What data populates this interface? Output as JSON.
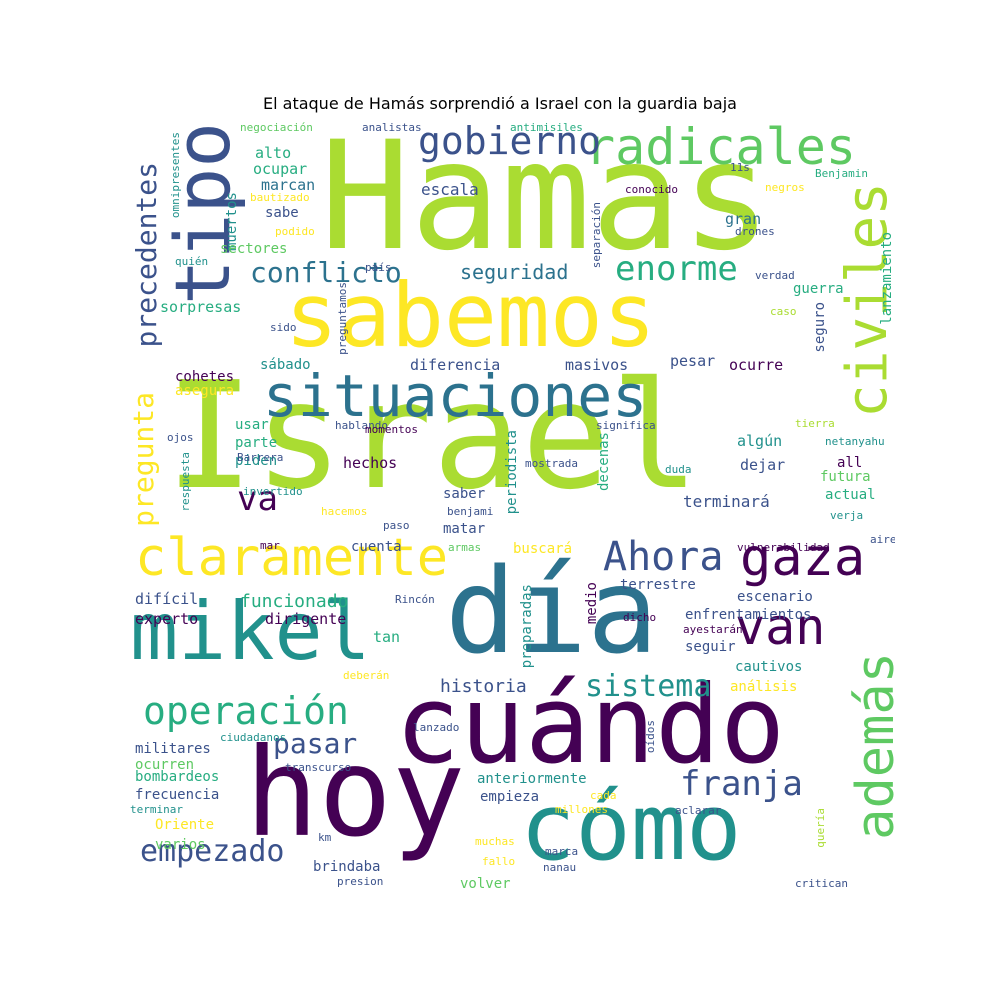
{
  "title": "El ataque de Hamás sorprendió a Israel con la guardia baja",
  "colors": {
    "purple": "#440154",
    "indigo": "#3b528b",
    "blue": "#2c728e",
    "teal": "#21918c",
    "green": "#27ad81",
    "lime": "#5ec962",
    "yellow": "#fde725",
    "yellowgreen": "#aadc32"
  },
  "words": [
    {
      "text": "Hamas",
      "color": "yellowgreen"
    },
    {
      "text": "Israel",
      "color": "yellowgreen"
    },
    {
      "text": "sabemos",
      "color": "yellow"
    },
    {
      "text": "día",
      "color": "blue"
    },
    {
      "text": "cuándo",
      "color": "purple"
    },
    {
      "text": "hoy",
      "color": "purple"
    },
    {
      "text": "cómo",
      "color": "teal"
    },
    {
      "text": "mikel",
      "color": "teal"
    },
    {
      "text": "tipo",
      "color": "indigo"
    },
    {
      "text": "situaciones",
      "color": "blue"
    },
    {
      "text": "radicales",
      "color": "lime"
    },
    {
      "text": "claramente",
      "color": "yellow"
    },
    {
      "text": "gaza",
      "color": "purple"
    },
    {
      "text": "van",
      "color": "purple"
    },
    {
      "text": "civiles",
      "color": "yellowgreen"
    },
    {
      "text": "además",
      "color": "lime"
    },
    {
      "text": "gobierno",
      "color": "indigo"
    },
    {
      "text": "operación",
      "color": "green"
    },
    {
      "text": "Ahora",
      "color": "indigo"
    },
    {
      "text": "enorme",
      "color": "green"
    },
    {
      "text": "conflicto",
      "color": "blue"
    },
    {
      "text": "precedentes",
      "color": "indigo"
    },
    {
      "text": "pregunta",
      "color": "yellow"
    },
    {
      "text": "sistema",
      "color": "teal"
    },
    {
      "text": "franja",
      "color": "indigo"
    },
    {
      "text": "empezado",
      "color": "indigo"
    },
    {
      "text": "pasar",
      "color": "indigo"
    },
    {
      "text": "va",
      "color": "purple"
    },
    {
      "text": "seguridad",
      "color": "blue"
    },
    {
      "text": "funcionado",
      "color": "green"
    },
    {
      "text": "historia",
      "color": "indigo"
    },
    {
      "text": "escala",
      "color": "indigo"
    },
    {
      "text": "alto",
      "color": "green"
    },
    {
      "text": "ocupar",
      "color": "green"
    },
    {
      "text": "marcan",
      "color": "blue"
    },
    {
      "text": "sabe",
      "color": "indigo"
    },
    {
      "text": "muertos",
      "color": "teal"
    },
    {
      "text": "sectores",
      "color": "lime"
    },
    {
      "text": "sorpresas",
      "color": "green"
    },
    {
      "text": "diferencia",
      "color": "indigo"
    },
    {
      "text": "masivos",
      "color": "indigo"
    },
    {
      "text": "pesar",
      "color": "indigo"
    },
    {
      "text": "ocurre",
      "color": "purple"
    },
    {
      "text": "sábado",
      "color": "teal"
    },
    {
      "text": "cohetes",
      "color": "purple"
    },
    {
      "text": "asegura",
      "color": "yellow"
    },
    {
      "text": "gran",
      "color": "blue"
    },
    {
      "text": "guerra",
      "color": "green"
    },
    {
      "text": "seguro",
      "color": "indigo"
    },
    {
      "text": "lanzamiento",
      "color": "green"
    },
    {
      "text": "usar",
      "color": "green"
    },
    {
      "text": "parte",
      "color": "green"
    },
    {
      "text": "piden",
      "color": "teal"
    },
    {
      "text": "hechos",
      "color": "purple"
    },
    {
      "text": "algún",
      "color": "teal"
    },
    {
      "text": "dejar",
      "color": "indigo"
    },
    {
      "text": "all",
      "color": "purple"
    },
    {
      "text": "futura",
      "color": "lime"
    },
    {
      "text": "actual",
      "color": "green"
    },
    {
      "text": "saber",
      "color": "indigo"
    },
    {
      "text": "terminará",
      "color": "indigo"
    },
    {
      "text": "matar",
      "color": "indigo"
    },
    {
      "text": "periodista",
      "color": "teal"
    },
    {
      "text": "decenas",
      "color": "green"
    },
    {
      "text": "cuenta",
      "color": "indigo"
    },
    {
      "text": "buscará",
      "color": "yellow"
    },
    {
      "text": "terrestre",
      "color": "indigo"
    },
    {
      "text": "escenario",
      "color": "indigo"
    },
    {
      "text": "difícil",
      "color": "indigo"
    },
    {
      "text": "experto",
      "color": "purple"
    },
    {
      "text": "dirigente",
      "color": "purple"
    },
    {
      "text": "tan",
      "color": "green"
    },
    {
      "text": "preparadas",
      "color": "teal"
    },
    {
      "text": "medio",
      "color": "purple"
    },
    {
      "text": "enfrentamientos",
      "color": "indigo"
    },
    {
      "text": "seguir",
      "color": "indigo"
    },
    {
      "text": "cautivos",
      "color": "teal"
    },
    {
      "text": "análisis",
      "color": "yellow"
    },
    {
      "text": "militares",
      "color": "indigo"
    },
    {
      "text": "ocurren",
      "color": "lime"
    },
    {
      "text": "bombardeos",
      "color": "green"
    },
    {
      "text": "frecuencia",
      "color": "indigo"
    },
    {
      "text": "Oriente",
      "color": "yellow"
    },
    {
      "text": "varios",
      "color": "lime"
    },
    {
      "text": "anteriormente",
      "color": "teal"
    },
    {
      "text": "empieza",
      "color": "indigo"
    },
    {
      "text": "brindaba",
      "color": "indigo"
    },
    {
      "text": "volver",
      "color": "lime"
    },
    {
      "text": "negociación",
      "color": "lime"
    },
    {
      "text": "analistas",
      "color": "indigo"
    },
    {
      "text": "antimisiles",
      "color": "green"
    },
    {
      "text": "omnipresentes",
      "color": "teal"
    },
    {
      "text": "bautizado",
      "color": "yellow"
    },
    {
      "text": "podido",
      "color": "yellow"
    },
    {
      "text": "quién",
      "color": "teal"
    },
    {
      "text": "sido",
      "color": "indigo"
    },
    {
      "text": "preguntamos",
      "color": "indigo"
    },
    {
      "text": "país",
      "color": "indigo"
    },
    {
      "text": "separación",
      "color": "indigo"
    },
    {
      "text": "conocido",
      "color": "purple"
    },
    {
      "text": "11s",
      "color": "indigo"
    },
    {
      "text": "Benjamin",
      "color": "green"
    },
    {
      "text": "negros",
      "color": "yellow"
    },
    {
      "text": "drones",
      "color": "indigo"
    },
    {
      "text": "verdad",
      "color": "indigo"
    },
    {
      "text": "caso",
      "color": "yellowgreen"
    },
    {
      "text": "hablando",
      "color": "indigo"
    },
    {
      "text": "momentos",
      "color": "purple"
    },
    {
      "text": "significa",
      "color": "indigo"
    },
    {
      "text": "tierra",
      "color": "yellowgreen"
    },
    {
      "text": "netanyahu",
      "color": "teal"
    },
    {
      "text": "ojos",
      "color": "indigo"
    },
    {
      "text": "respuesta",
      "color": "teal"
    },
    {
      "text": "Barrera",
      "color": "indigo"
    },
    {
      "text": "invertido",
      "color": "teal"
    },
    {
      "text": "hacemos",
      "color": "yellow"
    },
    {
      "text": "mostrada",
      "color": "indigo"
    },
    {
      "text": "duda",
      "color": "teal"
    },
    {
      "text": "benjami",
      "color": "indigo"
    },
    {
      "text": "verja",
      "color": "teal"
    },
    {
      "text": "paso",
      "color": "indigo"
    },
    {
      "text": "mar",
      "color": "purple"
    },
    {
      "text": "armas",
      "color": "lime"
    },
    {
      "text": "vulnerabilidad",
      "color": "purple"
    },
    {
      "text": "aire",
      "color": "indigo"
    },
    {
      "text": "Rincón",
      "color": "indigo"
    },
    {
      "text": "dicho",
      "color": "purple"
    },
    {
      "text": "ayestarán",
      "color": "purple"
    },
    {
      "text": "deberán",
      "color": "yellow"
    },
    {
      "text": "lanzado",
      "color": "indigo"
    },
    {
      "text": "ciudadanos",
      "color": "teal"
    },
    {
      "text": "oídos",
      "color": "indigo"
    },
    {
      "text": "transcurso",
      "color": "indigo"
    },
    {
      "text": "cada",
      "color": "yellow"
    },
    {
      "text": "millones",
      "color": "yellow"
    },
    {
      "text": "terminar",
      "color": "teal"
    },
    {
      "text": "aclarar",
      "color": "indigo"
    },
    {
      "text": "quería",
      "color": "yellowgreen"
    },
    {
      "text": "km",
      "color": "indigo"
    },
    {
      "text": "muchas",
      "color": "yellow"
    },
    {
      "text": "marca",
      "color": "indigo"
    },
    {
      "text": "fallo",
      "color": "yellow"
    },
    {
      "text": "nanau",
      "color": "indigo"
    },
    {
      "text": "presion",
      "color": "indigo"
    },
    {
      "text": "critican",
      "color": "indigo"
    }
  ]
}
